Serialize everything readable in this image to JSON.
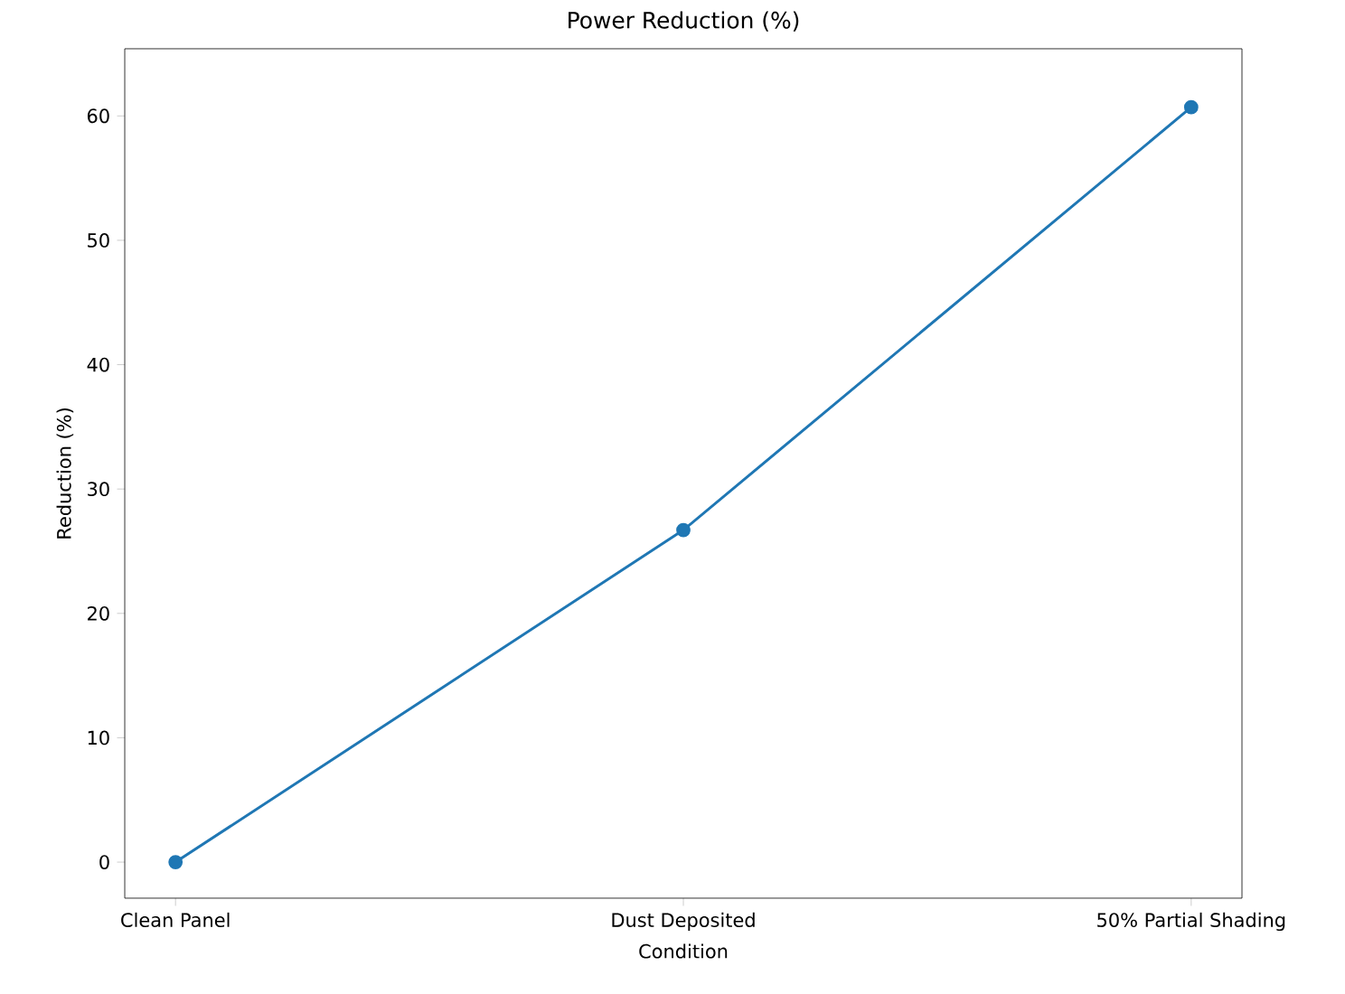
{
  "chart_data": {
    "type": "line",
    "title": "Power Reduction (%)",
    "xlabel": "Condition",
    "ylabel": "Reduction (%)",
    "categories": [
      "Clean Panel",
      "Dust Deposited",
      "50% Partial Shading"
    ],
    "series": [
      {
        "color": "#1f77b4",
        "values": [
          0,
          26.7,
          60.7
        ]
      }
    ],
    "ylim": [
      -2.9,
      65.4
    ],
    "yticks": [
      0,
      10,
      20,
      30,
      40,
      50,
      60
    ],
    "marker": "circle",
    "line_style": "solid",
    "grid": false
  }
}
